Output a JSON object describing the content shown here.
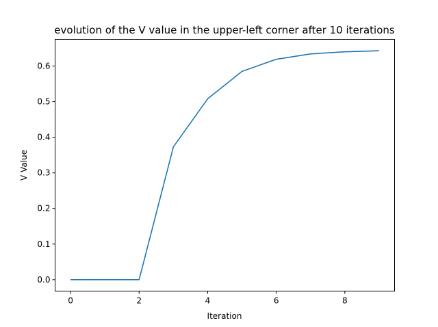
{
  "chart_data": {
    "type": "line",
    "title": "evolution of the V value in the upper-left corner after 10 iterations",
    "xlabel": "Iteration",
    "ylabel": "V Value",
    "xlim": [
      -0.45,
      9.45
    ],
    "ylim": [
      -0.032,
      0.675
    ],
    "x_ticks": [
      0,
      2,
      4,
      6,
      8
    ],
    "y_ticks": [
      0.0,
      0.1,
      0.2,
      0.3,
      0.4,
      0.5,
      0.6
    ],
    "x_tick_labels": [
      "0",
      "2",
      "4",
      "6",
      "8"
    ],
    "y_tick_labels": [
      "0.0",
      "0.1",
      "0.2",
      "0.3",
      "0.4",
      "0.5",
      "0.6"
    ],
    "grid": false,
    "series": [
      {
        "color": "#1f77b4",
        "x": [
          0,
          1,
          2,
          3,
          4,
          5,
          6,
          7,
          8,
          9
        ],
        "values": [
          0.0,
          0.0,
          0.0,
          0.373,
          0.508,
          0.585,
          0.619,
          0.634,
          0.64,
          0.643
        ]
      }
    ]
  }
}
